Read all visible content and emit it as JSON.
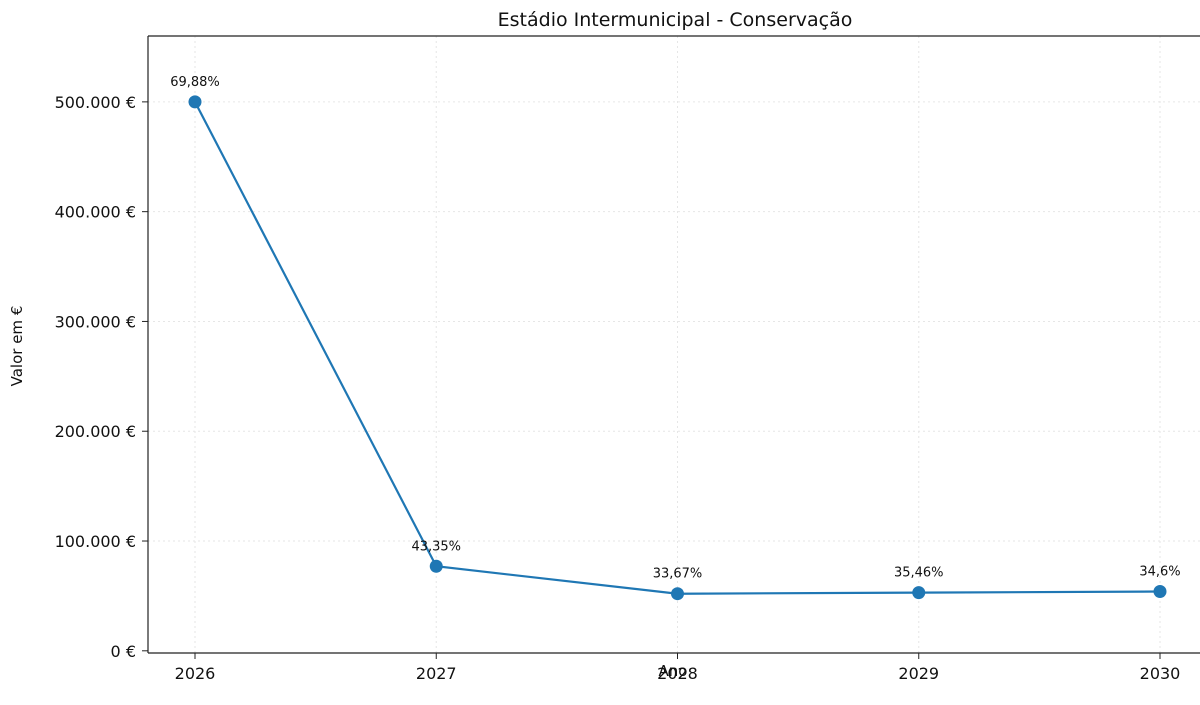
{
  "chart_data": {
    "type": "line",
    "title": "Estádio Intermunicipal - Conservação",
    "xlabel": "Ano",
    "ylabel": "Valor em €",
    "categories": [
      "2026",
      "2027",
      "2028",
      "2029",
      "2030"
    ],
    "series": [
      {
        "values": [
          500000,
          77000,
          52000,
          53000,
          54000
        ],
        "labels": [
          "69,88%",
          "43,35%",
          "33,67%",
          "35,46%",
          "34,6%"
        ],
        "color": "#1f77b4"
      }
    ],
    "yticks": [
      0,
      100000,
      200000,
      300000,
      400000,
      500000
    ],
    "ytick_labels": [
      "0 €",
      "100.000 €",
      "200.000 €",
      "300.000 €",
      "400.000 €",
      "500.000 €"
    ],
    "ylim": [
      -2000,
      560000
    ],
    "grid": true,
    "legend": "none"
  }
}
